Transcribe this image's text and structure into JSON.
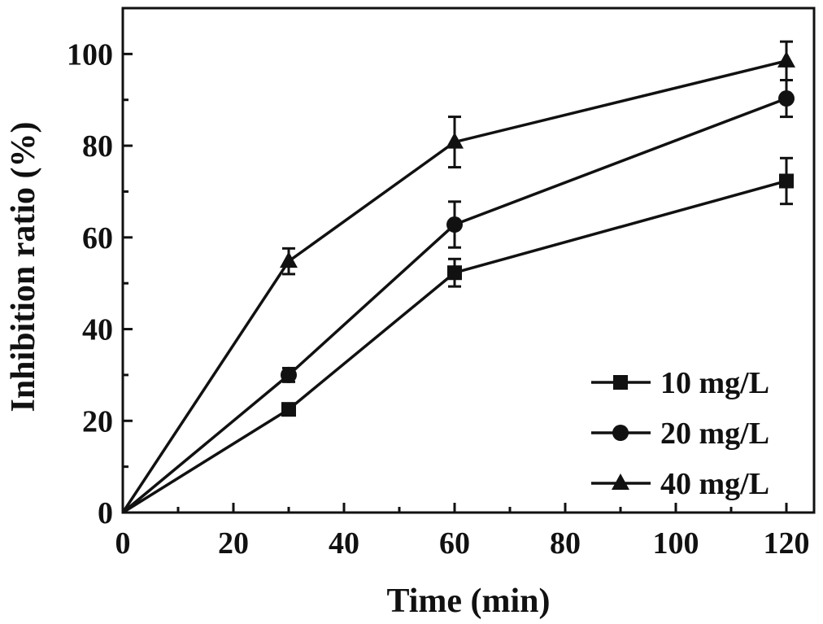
{
  "chart_data": {
    "type": "line",
    "xlabel": "Time (min)",
    "ylabel": "Inhibition ratio (%)",
    "xlim": [
      0,
      125
    ],
    "ylim": [
      0,
      110
    ],
    "x_ticks": [
      "0",
      "20",
      "40",
      "60",
      "80",
      "100",
      "120"
    ],
    "y_ticks": [
      "0",
      "20",
      "40",
      "60",
      "80",
      "100"
    ],
    "x": [
      0,
      30,
      60,
      120
    ],
    "grid": false,
    "legend_position": "bottom-right",
    "series": [
      {
        "name": "10 mg/L",
        "marker": "square",
        "values": [
          0,
          22.5,
          52.3,
          72.3
        ],
        "errors": [
          0,
          1.0,
          3.0,
          5.0
        ]
      },
      {
        "name": "20 mg/L",
        "marker": "circle",
        "values": [
          0,
          30.0,
          62.8,
          90.3
        ],
        "errors": [
          0,
          1.5,
          5.0,
          4.0
        ]
      },
      {
        "name": "40 mg/L",
        "marker": "triangle",
        "values": [
          0,
          54.8,
          80.8,
          98.5
        ],
        "errors": [
          0,
          2.8,
          5.5,
          4.2
        ]
      }
    ],
    "colors": {
      "line": "#111111",
      "background": "#ffffff"
    }
  }
}
